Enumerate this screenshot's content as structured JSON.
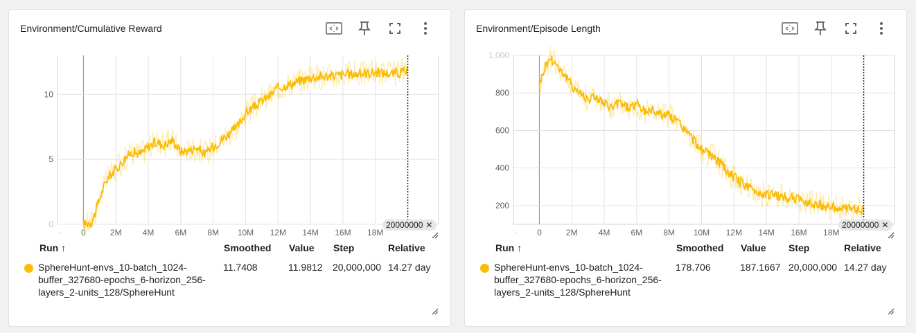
{
  "accent": "#fbbc04",
  "cards": [
    {
      "title": "Environment/Cumulative Reward",
      "toolbar": [
        "fit-domain-icon",
        "pin-icon",
        "fullscreen-icon",
        "more-vert-icon"
      ],
      "tooltip_step": "20000000",
      "chart_data": {
        "type": "line",
        "xlabel": "",
        "ylabel": "",
        "x_ticks": [
          "0",
          "2M",
          "4M",
          "6M",
          "8M",
          "10M",
          "12M",
          "14M",
          "16M",
          "18M"
        ],
        "y_ticks": [
          "0",
          "5",
          "10"
        ],
        "xlim": [
          -1600000,
          21900000
        ],
        "ylim": [
          0,
          13
        ],
        "series": [
          {
            "smoothed": true,
            "x": [
              0,
              500000,
              700000,
              1000000,
              1300000,
              1500000,
              2000000,
              2500000,
              3000000,
              3500000,
              4000000,
              4500000,
              5000000,
              5500000,
              6000000,
              6500000,
              7000000,
              7500000,
              8000000,
              8500000,
              9000000,
              9500000,
              10000000,
              10500000,
              11000000,
              11500000,
              12000000,
              12500000,
              13000000,
              13500000,
              14000000,
              15000000,
              16000000,
              17000000,
              18000000,
              19000000,
              20000000
            ],
            "y": [
              0,
              0.2,
              0.8,
              2.0,
              3.0,
              3.6,
              4.2,
              5.0,
              5.6,
              5.4,
              6.0,
              6.3,
              6.1,
              6.5,
              5.6,
              5.7,
              5.9,
              5.4,
              6.0,
              6.5,
              7.0,
              7.5,
              8.6,
              9.0,
              9.5,
              9.9,
              10.5,
              10.7,
              10.9,
              11.1,
              11.3,
              11.4,
              11.5,
              11.6,
              11.7,
              11.6,
              11.74
            ]
          }
        ]
      },
      "table": {
        "headers": {
          "run": "Run ↑",
          "smoothed": "Smoothed",
          "value": "Value",
          "step": "Step",
          "relative": "Relative"
        },
        "rows": [
          {
            "run_lines": [
              "SphereHunt-envs_10-batch_1024-",
              "buffer_327680-epochs_6-horizon_256-",
              "layers_2-units_128/SphereHunt"
            ],
            "smoothed": "11.7408",
            "value": "11.9812",
            "step": "20,000,000",
            "relative": "14.27 day"
          }
        ]
      }
    },
    {
      "title": "Environment/Episode Length",
      "toolbar": [
        "fit-domain-icon",
        "pin-icon",
        "fullscreen-icon",
        "more-vert-icon"
      ],
      "tooltip_step": "20000000",
      "chart_data": {
        "type": "line",
        "xlabel": "",
        "ylabel": "",
        "x_ticks": [
          "0",
          "2M",
          "4M",
          "6M",
          "8M",
          "10M",
          "12M",
          "14M",
          "16M",
          "18M"
        ],
        "y_ticks": [
          "200",
          "400",
          "600",
          "800",
          "1,000"
        ],
        "xlim": [
          -1600000,
          21900000
        ],
        "ylim": [
          100,
          1000
        ],
        "series": [
          {
            "smoothed": true,
            "x": [
              0,
              200000,
              400000,
              700000,
              1000000,
              1500000,
              2000000,
              2500000,
              3000000,
              3500000,
              4000000,
              4500000,
              5000000,
              5500000,
              6000000,
              6500000,
              7000000,
              7500000,
              8000000,
              8500000,
              9000000,
              9500000,
              10000000,
              10500000,
              11000000,
              11500000,
              12000000,
              12500000,
              13000000,
              13500000,
              14000000,
              14500000,
              15000000,
              15500000,
              16000000,
              17000000,
              18000000,
              19000000,
              20000000
            ],
            "y": [
              840,
              900,
              950,
              985,
              960,
              900,
              840,
              800,
              770,
              780,
              740,
              720,
              750,
              720,
              740,
              700,
              710,
              690,
              680,
              650,
              600,
              550,
              500,
              470,
              440,
              390,
              350,
              320,
              290,
              270,
              260,
              255,
              245,
              240,
              230,
              210,
              190,
              180,
              178
            ]
          }
        ]
      },
      "table": {
        "headers": {
          "run": "Run ↑",
          "smoothed": "Smoothed",
          "value": "Value",
          "step": "Step",
          "relative": "Relative"
        },
        "rows": [
          {
            "run_lines": [
              "SphereHunt-envs_10-batch_1024-",
              "buffer_327680-epochs_6-horizon_256-",
              "layers_2-units_128/SphereHunt"
            ],
            "smoothed": "178.706",
            "value": "187.1667",
            "step": "20,000,000",
            "relative": "14.27 day"
          }
        ]
      }
    }
  ]
}
